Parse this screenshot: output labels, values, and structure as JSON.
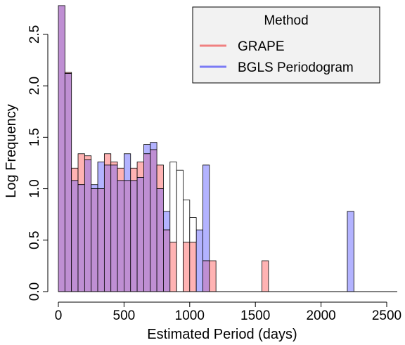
{
  "chart_data": {
    "type": "bar",
    "subtype": "overlaid-histogram",
    "title": "",
    "xlabel": "Estimated Period (days)",
    "ylabel": "Log Frequency",
    "xlim": [
      0,
      2500
    ],
    "ylim": [
      0,
      2.8
    ],
    "bin_width": 50,
    "x_ticks": [
      0,
      500,
      1000,
      1500,
      2000,
      2500
    ],
    "x_tick_labels": [
      "0",
      "500",
      "1000",
      "1500",
      "2000",
      "2500"
    ],
    "y_ticks": [
      0,
      0.5,
      1,
      1.5,
      2,
      2.5
    ],
    "y_tick_labels": [
      "0.0",
      "0.5",
      "1.0",
      "1.5",
      "2.0",
      "2.5"
    ],
    "grid": false,
    "legend": {
      "title": "Method",
      "placement": "top-right",
      "entries": [
        {
          "name": "GRAPE",
          "color": "#f08080"
        },
        {
          "name": "BGLS Periodogram",
          "color": "#7b7bf5"
        }
      ]
    },
    "series": [
      {
        "name": "GRAPE",
        "fill": "#ffb3b3",
        "bins": [
          {
            "x0": 0,
            "x1": 50,
            "value": 2.78
          },
          {
            "x0": 50,
            "x1": 100,
            "value": 2.13
          },
          {
            "x0": 100,
            "x1": 150,
            "value": 1.2
          },
          {
            "x0": 150,
            "x1": 200,
            "value": 1.34
          },
          {
            "x0": 200,
            "x1": 250,
            "value": 1.32
          },
          {
            "x0": 250,
            "x1": 300,
            "value": 1.0
          },
          {
            "x0": 300,
            "x1": 350,
            "value": 1.0
          },
          {
            "x0": 350,
            "x1": 400,
            "value": 1.34
          },
          {
            "x0": 400,
            "x1": 450,
            "value": 1.26
          },
          {
            "x0": 450,
            "x1": 500,
            "value": 1.2
          },
          {
            "x0": 500,
            "x1": 550,
            "value": 1.08
          },
          {
            "x0": 550,
            "x1": 600,
            "value": 1.2
          },
          {
            "x0": 600,
            "x1": 650,
            "value": 1.26
          },
          {
            "x0": 650,
            "x1": 700,
            "value": 1.34
          },
          {
            "x0": 700,
            "x1": 750,
            "value": 1.38
          },
          {
            "x0": 750,
            "x1": 800,
            "value": 1.23
          },
          {
            "x0": 800,
            "x1": 850,
            "value": 0.6
          },
          {
            "x0": 850,
            "x1": 900,
            "value": 0.48
          },
          {
            "x0": 950,
            "x1": 1000,
            "value": 0.48
          },
          {
            "x0": 1000,
            "x1": 1050,
            "value": 0.48
          },
          {
            "x0": 1100,
            "x1": 1150,
            "value": 0.3
          },
          {
            "x0": 1150,
            "x1": 1200,
            "value": 0.3
          },
          {
            "x0": 1550,
            "x1": 1600,
            "value": 0.3
          }
        ]
      },
      {
        "name": "BGLS Periodogram",
        "fill": "#b3b3ff",
        "bins": [
          {
            "x0": 0,
            "x1": 50,
            "value": 2.78
          },
          {
            "x0": 50,
            "x1": 100,
            "value": 2.12
          },
          {
            "x0": 100,
            "x1": 150,
            "value": 1.08
          },
          {
            "x0": 150,
            "x1": 200,
            "value": 1.04
          },
          {
            "x0": 200,
            "x1": 250,
            "value": 1.28
          },
          {
            "x0": 250,
            "x1": 300,
            "value": 1.04
          },
          {
            "x0": 300,
            "x1": 350,
            "value": 1.26
          },
          {
            "x0": 350,
            "x1": 400,
            "value": 1.23
          },
          {
            "x0": 400,
            "x1": 450,
            "value": 1.23
          },
          {
            "x0": 450,
            "x1": 500,
            "value": 1.08
          },
          {
            "x0": 500,
            "x1": 550,
            "value": 1.34
          },
          {
            "x0": 550,
            "x1": 600,
            "value": 1.08
          },
          {
            "x0": 600,
            "x1": 650,
            "value": 1.11
          },
          {
            "x0": 650,
            "x1": 700,
            "value": 1.43
          },
          {
            "x0": 700,
            "x1": 750,
            "value": 1.45
          },
          {
            "x0": 750,
            "x1": 800,
            "value": 1.0
          },
          {
            "x0": 800,
            "x1": 850,
            "value": 0.78
          },
          {
            "x0": 1050,
            "x1": 1100,
            "value": 0.6
          },
          {
            "x0": 1100,
            "x1": 1150,
            "value": 1.23
          },
          {
            "x0": 2200,
            "x1": 2250,
            "value": 0.78
          }
        ]
      }
    ],
    "overlap_fill": "#bf8fd3"
  }
}
